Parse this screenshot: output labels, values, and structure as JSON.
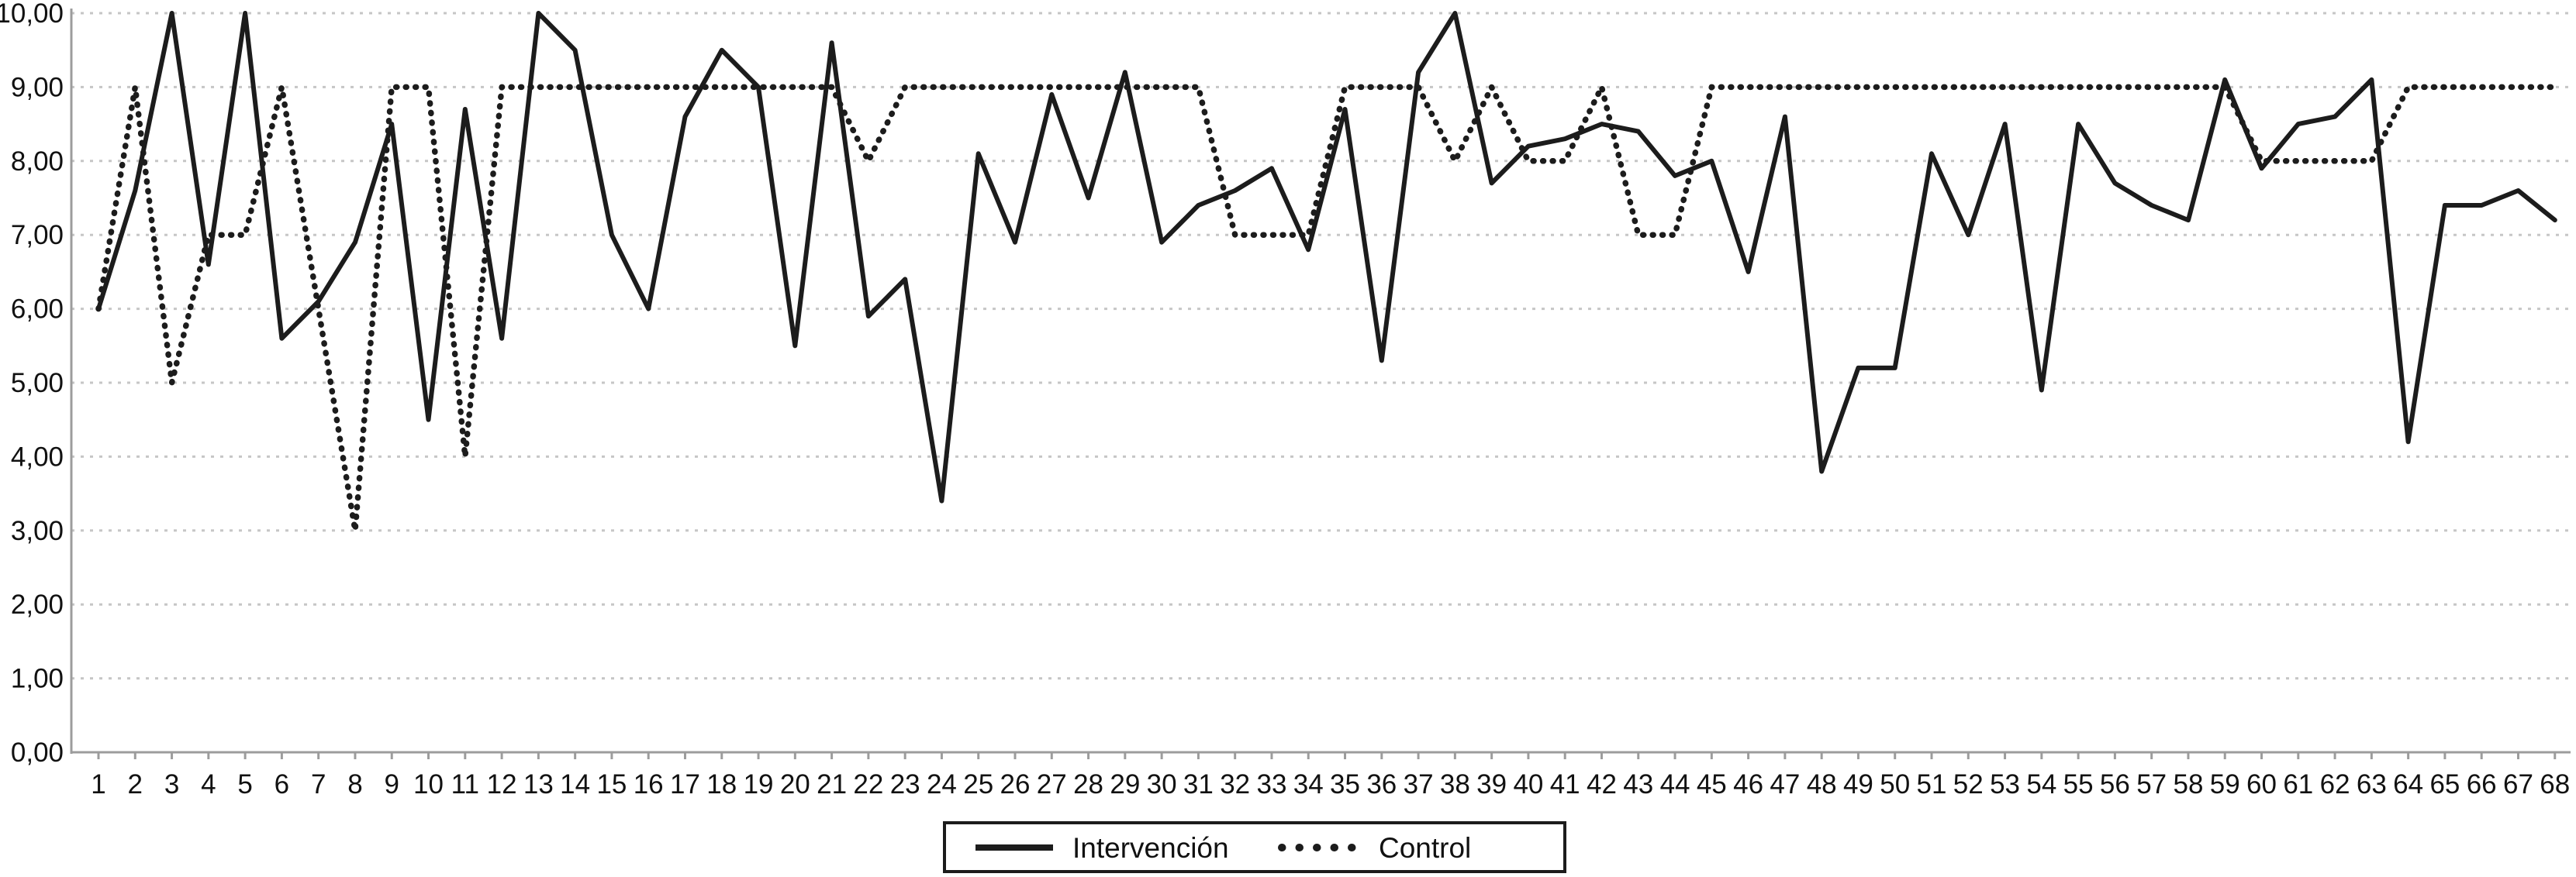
{
  "figure": {
    "background": "#ffffff",
    "line_color": "#1c1c1c",
    "gridline_color": "#c6c6c6",
    "axis_color": "#9c9c9c",
    "text_color": "#111111"
  },
  "legend": {
    "items": [
      {
        "label": "Intervención",
        "style": "solid"
      },
      {
        "label": "Control",
        "style": "dotted"
      }
    ]
  },
  "chart_data": {
    "type": "line",
    "title": "",
    "xlabel": "",
    "ylabel": "",
    "ylim": [
      0,
      10
    ],
    "grid": true,
    "legend_position": "bottom-center",
    "y_tick_labels": [
      "0,00",
      "1,00",
      "2,00",
      "3,00",
      "4,00",
      "5,00",
      "6,00",
      "7,00",
      "8,00",
      "9,00",
      "10,00"
    ],
    "x": [
      1,
      2,
      3,
      4,
      5,
      6,
      7,
      8,
      9,
      10,
      11,
      12,
      13,
      14,
      15,
      16,
      17,
      18,
      19,
      20,
      21,
      22,
      23,
      24,
      25,
      26,
      27,
      28,
      29,
      30,
      31,
      32,
      33,
      34,
      35,
      36,
      37,
      38,
      39,
      40,
      41,
      42,
      43,
      44,
      45,
      46,
      47,
      48,
      49,
      50,
      51,
      52,
      53,
      54,
      55,
      56,
      57,
      58,
      59,
      60,
      61,
      62,
      63,
      64,
      65,
      66,
      67,
      68
    ],
    "series": [
      {
        "name": "Intervención",
        "style": "solid",
        "values": [
          6.0,
          7.6,
          10.0,
          6.6,
          10.0,
          5.6,
          6.1,
          6.9,
          8.5,
          4.5,
          8.7,
          5.6,
          10.0,
          9.5,
          7.0,
          6.0,
          8.6,
          9.5,
          9.0,
          5.5,
          9.6,
          5.9,
          6.4,
          3.4,
          8.1,
          6.9,
          8.9,
          7.5,
          9.2,
          6.9,
          7.4,
          7.6,
          7.9,
          6.8,
          8.7,
          5.3,
          9.2,
          10.0,
          7.7,
          8.2,
          8.3,
          8.5,
          8.4,
          7.8,
          8.0,
          6.5,
          8.6,
          3.8,
          5.2,
          5.2,
          8.1,
          7.0,
          8.5,
          4.9,
          8.5,
          7.7,
          7.4,
          7.2,
          9.1,
          7.9,
          8.5,
          8.6,
          9.1,
          4.2,
          7.4,
          7.4,
          7.6,
          7.2
        ]
      },
      {
        "name": "Control",
        "style": "dotted",
        "values": [
          6.0,
          9.0,
          5.0,
          7.0,
          7.0,
          9.0,
          6.0,
          3.0,
          9.0,
          9.0,
          4.0,
          9.0,
          9.0,
          9.0,
          9.0,
          9.0,
          9.0,
          9.0,
          9.0,
          9.0,
          9.0,
          8.0,
          9.0,
          9.0,
          9.0,
          9.0,
          9.0,
          9.0,
          9.0,
          9.0,
          9.0,
          7.0,
          7.0,
          7.0,
          9.0,
          9.0,
          9.0,
          8.0,
          9.0,
          8.0,
          8.0,
          9.0,
          7.0,
          7.0,
          9.0,
          9.0,
          9.0,
          9.0,
          9.0,
          9.0,
          9.0,
          9.0,
          9.0,
          9.0,
          9.0,
          9.0,
          9.0,
          9.0,
          9.0,
          8.0,
          8.0,
          8.0,
          8.0,
          9.0,
          9.0,
          9.0,
          9.0,
          9.0
        ]
      }
    ]
  }
}
